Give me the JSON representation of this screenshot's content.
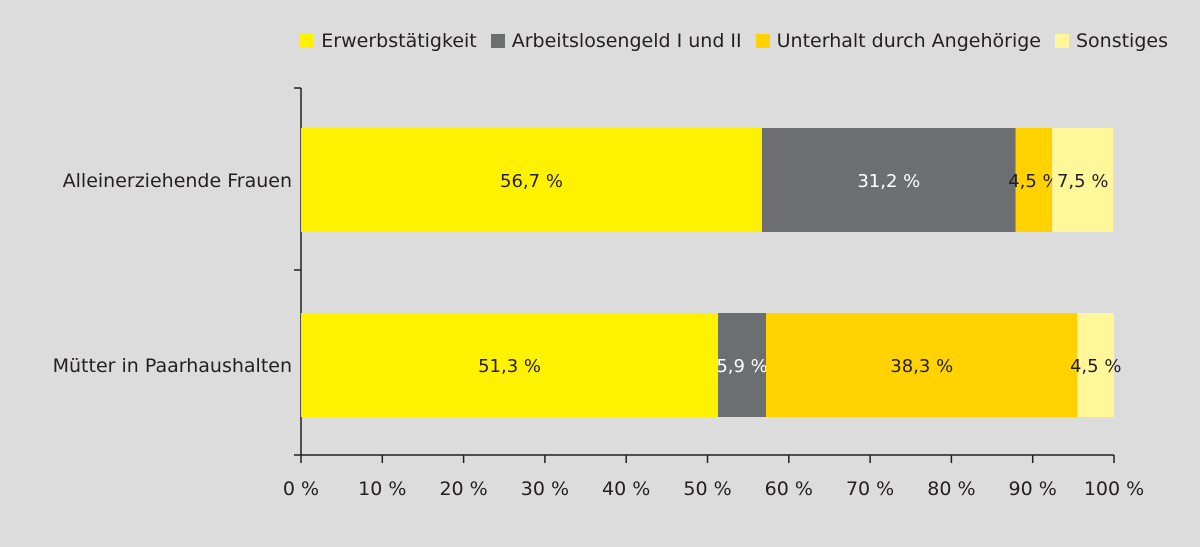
{
  "chart_data": {
    "type": "bar",
    "orientation": "horizontal",
    "stacked": true,
    "categories": [
      "Alleinerziehende Frauen",
      "Mütter in Paarhaushalten"
    ],
    "series": [
      {
        "name": "Erwerbstätigkeit",
        "color": "#fff200",
        "values": [
          56.7,
          51.3
        ],
        "labels": [
          "56,7 %",
          "51,3 %"
        ]
      },
      {
        "name": "Arbeitslosengeld I und II",
        "color": "#6d6e71",
        "values": [
          31.2,
          5.9
        ],
        "labels": [
          "31,2 %",
          "5,9 %"
        ]
      },
      {
        "name": "Unterhalt durch Angehörige",
        "color": "#ffd200",
        "values": [
          4.5,
          38.3
        ],
        "labels": [
          "4,5 %",
          "38,3 %"
        ]
      },
      {
        "name": "Sonstiges",
        "color": "#fff799",
        "values": [
          7.5,
          4.5
        ],
        "labels": [
          "7,5 %",
          "4,5 %"
        ]
      }
    ],
    "xticks": [
      "0 %",
      "10 %",
      "20 %",
      "30 %",
      "40 %",
      "50 %",
      "60 %",
      "70 %",
      "80 %",
      "90 %",
      "100 %"
    ],
    "xlim": [
      0,
      100
    ],
    "grid": false,
    "legend_position": "top-right",
    "title": "",
    "xlabel": "",
    "ylabel": ""
  }
}
